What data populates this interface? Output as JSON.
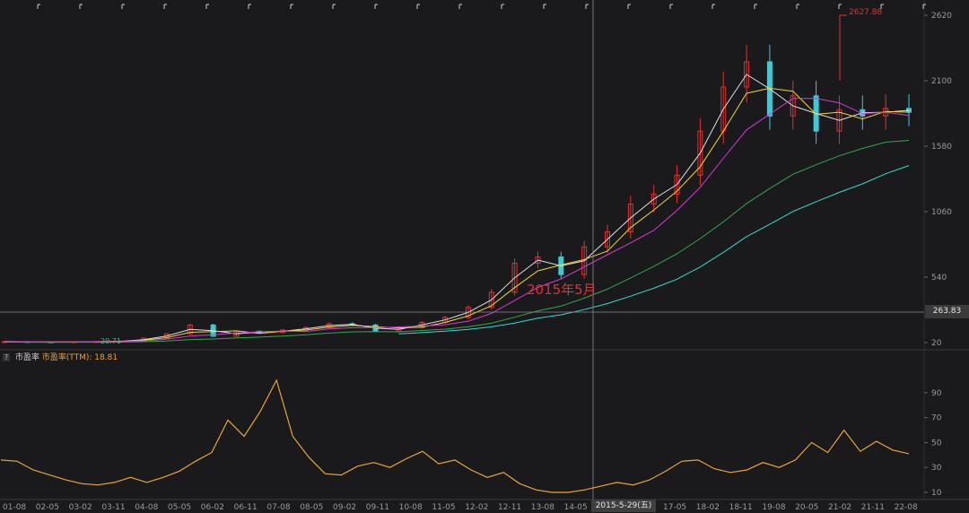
{
  "annotation_text": "2015年5月",
  "peak_label": "2627.88",
  "current_price_label": "263.83",
  "crosshair_date": "2015-5-29(五)",
  "low_label": "20.71",
  "indicator": {
    "help": "?",
    "name": "市盈率",
    "series_label": "市盈率(TTM): 18.81"
  },
  "colors": {
    "background": "#1a1a1d",
    "up_candle": "#e03131",
    "down_candle": "#3ec9d6",
    "ma5": "#e0e0e0",
    "ma10": "#f0d43a",
    "ma20": "#d23ad6",
    "ma60": "#2fa84a",
    "ma120": "#3ad6d6",
    "pe_line": "#e8a33a"
  },
  "chart_data": [
    {
      "type": "line",
      "title": "",
      "ylim": [
        20,
        2620
      ],
      "yticks": [
        20,
        540,
        1060,
        1580,
        2100,
        2620
      ],
      "x_ticks": [
        "01-08",
        "02-05",
        "03-02",
        "03-11",
        "04-08",
        "05-05",
        "06-02",
        "06-11",
        "07-08",
        "08-05",
        "09-02",
        "09-11",
        "10-08",
        "11-05",
        "12-02",
        "12-11",
        "13-08",
        "14-05",
        "15",
        "2015-5-29(五)",
        "17-05",
        "18-02",
        "18-11",
        "19-08",
        "20-05",
        "21-02",
        "21-11",
        "22-08"
      ],
      "series": [
        {
          "name": "",
          "role": "candlestick_close",
          "x": [
            "01-08",
            "02-05",
            "03-02",
            "03-11",
            "04-08",
            "05-05",
            "06-02",
            "06-11",
            "07-08",
            "08-05",
            "09-02",
            "09-11",
            "10-08",
            "11-05",
            "12-02",
            "12-11",
            "13-08",
            "14-05",
            "15-05",
            "15-11",
            "16-05",
            "16-11",
            "17-05",
            "17-11",
            "18-02",
            "18-05",
            "18-11",
            "19-05",
            "19-08",
            "19-11",
            "20-05",
            "20-08",
            "20-11",
            "21-02",
            "21-05",
            "21-08",
            "21-11",
            "22-02",
            "22-05",
            "22-08"
          ],
          "values": [
            28,
            26,
            25,
            27,
            28,
            32,
            55,
            90,
            160,
            70,
            110,
            100,
            120,
            140,
            170,
            160,
            110,
            140,
            180,
            220,
            300,
            420,
            650,
            700,
            560,
            780,
            900,
            1120,
            1200,
            1350,
            1700,
            2050,
            2250,
            1820,
            1980,
            1700,
            1870,
            1820,
            1880,
            1850
          ]
        }
      ]
    },
    {
      "type": "line",
      "title": "",
      "ylim": [
        10,
        100
      ],
      "yticks": [
        10,
        30,
        50,
        70,
        90
      ],
      "series": [
        {
          "name": "市盈率(TTM)",
          "x": [
            "01-08",
            "01-11",
            "02-05",
            "02-11",
            "03-02",
            "03-08",
            "03-11",
            "04-05",
            "04-08",
            "04-11",
            "05-05",
            "05-11",
            "06-02",
            "06-08",
            "06-11",
            "07-02",
            "07-05",
            "07-08",
            "07-11",
            "08-05",
            "08-11",
            "09-02",
            "09-08",
            "09-11",
            "10-05",
            "10-08",
            "10-11",
            "11-05",
            "11-11",
            "12-02",
            "12-08",
            "12-11",
            "13-05",
            "13-08",
            "14-02",
            "14-05",
            "14-11",
            "15-05",
            "15-11",
            "16-05",
            "16-11",
            "17-05",
            "17-11",
            "18-02",
            "18-08",
            "18-11",
            "19-05",
            "19-08",
            "19-11",
            "20-05",
            "20-08",
            "20-11",
            "21-02",
            "21-08",
            "21-11",
            "22-05",
            "22-08"
          ],
          "values": [
            36,
            35,
            28,
            24,
            20,
            17,
            16,
            18,
            22,
            18,
            22,
            27,
            35,
            42,
            68,
            55,
            75,
            100,
            55,
            38,
            25,
            24,
            31,
            34,
            30,
            37,
            43,
            33,
            36,
            28,
            22,
            26,
            17,
            12,
            10,
            10,
            12,
            15,
            18,
            16,
            20,
            27,
            35,
            36,
            29,
            26,
            28,
            34,
            30,
            36,
            50,
            42,
            60,
            43,
            51,
            44,
            41
          ]
        }
      ]
    }
  ]
}
